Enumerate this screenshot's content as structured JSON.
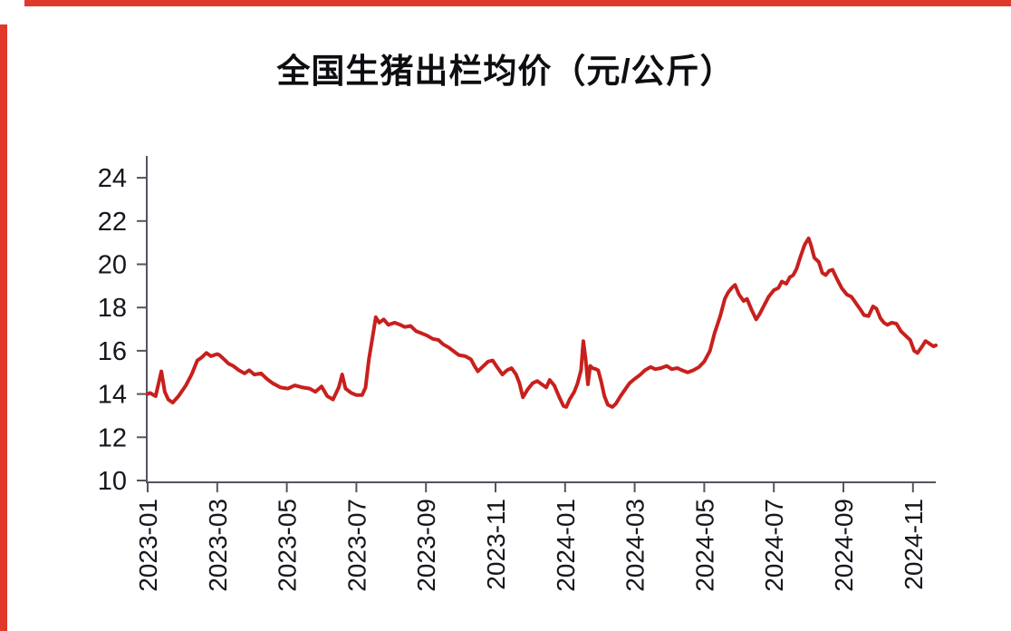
{
  "decor": {
    "top_bar_color": "#e0382b",
    "left_bar_color": "#e0382b"
  },
  "chart_data": {
    "type": "line",
    "title": "全国生猪出栏均价（元/公斤）",
    "xlabel": "",
    "ylabel": "",
    "grid": false,
    "legend": "none",
    "line_color": "#c8201d",
    "axis_color": "#54545f",
    "ylim": [
      10,
      25
    ],
    "y_ticks": [
      10,
      12,
      14,
      16,
      18,
      20,
      22,
      24
    ],
    "x_tick_rotation_deg": 90,
    "x_tick_labels": [
      "2023-01",
      "2023-03",
      "2023-05",
      "2023-07",
      "2023-09",
      "2023-11",
      "2024-01",
      "2024-03",
      "2024-05",
      "2024-07",
      "2024-09",
      "2024-11"
    ],
    "points": [
      [
        "2023-01-01",
        14.0
      ],
      [
        "2023-01-03",
        14.05
      ],
      [
        "2023-01-08",
        13.9
      ],
      [
        "2023-01-13",
        15.05
      ],
      [
        "2023-01-16",
        14.1
      ],
      [
        "2023-01-19",
        13.75
      ],
      [
        "2023-01-23",
        13.6
      ],
      [
        "2023-01-28",
        13.9
      ],
      [
        "2023-02-04",
        14.4
      ],
      [
        "2023-02-09",
        14.9
      ],
      [
        "2023-02-14",
        15.55
      ],
      [
        "2023-02-18",
        15.7
      ],
      [
        "2023-02-22",
        15.9
      ],
      [
        "2023-02-26",
        15.75
      ],
      [
        "2023-03-01",
        15.85
      ],
      [
        "2023-03-03",
        15.8
      ],
      [
        "2023-03-07",
        15.6
      ],
      [
        "2023-03-11",
        15.4
      ],
      [
        "2023-03-15",
        15.3
      ],
      [
        "2023-03-20",
        15.1
      ],
      [
        "2023-03-25",
        14.95
      ],
      [
        "2023-03-29",
        15.1
      ],
      [
        "2023-04-03",
        14.9
      ],
      [
        "2023-04-09",
        14.95
      ],
      [
        "2023-04-14",
        14.7
      ],
      [
        "2023-04-19",
        14.5
      ],
      [
        "2023-04-26",
        14.3
      ],
      [
        "2023-05-02",
        14.25
      ],
      [
        "2023-05-08",
        14.4
      ],
      [
        "2023-05-15",
        14.3
      ],
      [
        "2023-05-21",
        14.25
      ],
      [
        "2023-05-26",
        14.1
      ],
      [
        "2023-06-01",
        14.35
      ],
      [
        "2023-06-06",
        13.9
      ],
      [
        "2023-06-11",
        13.75
      ],
      [
        "2023-06-16",
        14.3
      ],
      [
        "2023-06-19",
        14.9
      ],
      [
        "2023-06-22",
        14.25
      ],
      [
        "2023-06-27",
        14.05
      ],
      [
        "2023-07-01",
        13.95
      ],
      [
        "2023-07-06",
        13.95
      ],
      [
        "2023-07-09",
        14.3
      ],
      [
        "2023-07-12",
        15.6
      ],
      [
        "2023-07-16",
        16.9
      ],
      [
        "2023-07-18",
        17.55
      ],
      [
        "2023-07-21",
        17.3
      ],
      [
        "2023-07-25",
        17.45
      ],
      [
        "2023-07-29",
        17.2
      ],
      [
        "2023-08-04",
        17.3
      ],
      [
        "2023-08-09",
        17.2
      ],
      [
        "2023-08-13",
        17.1
      ],
      [
        "2023-08-18",
        17.15
      ],
      [
        "2023-08-23",
        16.9
      ],
      [
        "2023-08-28",
        16.8
      ],
      [
        "2023-09-02",
        16.7
      ],
      [
        "2023-09-07",
        16.55
      ],
      [
        "2023-09-12",
        16.5
      ],
      [
        "2023-09-16",
        16.3
      ],
      [
        "2023-09-21",
        16.15
      ],
      [
        "2023-09-26",
        15.95
      ],
      [
        "2023-09-30",
        15.8
      ],
      [
        "2023-10-05",
        15.75
      ],
      [
        "2023-10-10",
        15.6
      ],
      [
        "2023-10-13",
        15.3
      ],
      [
        "2023-10-16",
        15.05
      ],
      [
        "2023-10-21",
        15.3
      ],
      [
        "2023-10-25",
        15.5
      ],
      [
        "2023-10-29",
        15.55
      ],
      [
        "2023-11-03",
        15.2
      ],
      [
        "2023-11-07",
        14.9
      ],
      [
        "2023-11-11",
        15.1
      ],
      [
        "2023-11-15",
        15.2
      ],
      [
        "2023-11-19",
        14.9
      ],
      [
        "2023-11-22",
        14.5
      ],
      [
        "2023-11-25",
        13.85
      ],
      [
        "2023-11-29",
        14.2
      ],
      [
        "2023-12-03",
        14.5
      ],
      [
        "2023-12-07",
        14.6
      ],
      [
        "2023-12-11",
        14.45
      ],
      [
        "2023-12-15",
        14.3
      ],
      [
        "2023-12-18",
        14.65
      ],
      [
        "2023-12-22",
        14.4
      ],
      [
        "2023-12-26",
        13.9
      ],
      [
        "2023-12-30",
        13.45
      ],
      [
        "2024-01-02",
        13.4
      ],
      [
        "2024-01-05",
        13.75
      ],
      [
        "2024-01-09",
        14.1
      ],
      [
        "2024-01-12",
        14.5
      ],
      [
        "2024-01-15",
        15.1
      ],
      [
        "2024-01-17",
        16.45
      ],
      [
        "2024-01-19",
        15.6
      ],
      [
        "2024-01-21",
        14.45
      ],
      [
        "2024-01-23",
        15.3
      ],
      [
        "2024-01-25",
        15.2
      ],
      [
        "2024-01-28",
        15.15
      ],
      [
        "2024-01-30",
        15.1
      ],
      [
        "2024-02-02",
        14.6
      ],
      [
        "2024-02-05",
        13.9
      ],
      [
        "2024-02-08",
        13.5
      ],
      [
        "2024-02-12",
        13.4
      ],
      [
        "2024-02-15",
        13.55
      ],
      [
        "2024-02-19",
        13.9
      ],
      [
        "2024-02-23",
        14.2
      ],
      [
        "2024-02-27",
        14.5
      ],
      [
        "2024-03-01",
        14.7
      ],
      [
        "2024-03-05",
        14.85
      ],
      [
        "2024-03-10",
        15.1
      ],
      [
        "2024-03-15",
        15.25
      ],
      [
        "2024-03-19",
        15.15
      ],
      [
        "2024-03-24",
        15.2
      ],
      [
        "2024-03-29",
        15.3
      ],
      [
        "2024-04-03",
        15.15
      ],
      [
        "2024-04-08",
        15.2
      ],
      [
        "2024-04-12",
        15.1
      ],
      [
        "2024-04-17",
        15.0
      ],
      [
        "2024-04-22",
        15.1
      ],
      [
        "2024-04-27",
        15.25
      ],
      [
        "2024-05-01",
        15.5
      ],
      [
        "2024-05-06",
        16.0
      ],
      [
        "2024-05-10",
        16.8
      ],
      [
        "2024-05-15",
        17.6
      ],
      [
        "2024-05-19",
        18.4
      ],
      [
        "2024-05-22",
        18.7
      ],
      [
        "2024-05-25",
        18.9
      ],
      [
        "2024-05-28",
        19.05
      ],
      [
        "2024-06-01",
        18.6
      ],
      [
        "2024-06-05",
        18.3
      ],
      [
        "2024-06-08",
        18.4
      ],
      [
        "2024-06-12",
        17.9
      ],
      [
        "2024-06-16",
        17.45
      ],
      [
        "2024-06-19",
        17.7
      ],
      [
        "2024-06-23",
        18.1
      ],
      [
        "2024-06-27",
        18.5
      ],
      [
        "2024-07-01",
        18.8
      ],
      [
        "2024-07-05",
        18.9
      ],
      [
        "2024-07-08",
        19.2
      ],
      [
        "2024-07-12",
        19.1
      ],
      [
        "2024-07-15",
        19.4
      ],
      [
        "2024-07-18",
        19.5
      ],
      [
        "2024-07-21",
        19.8
      ],
      [
        "2024-07-24",
        20.3
      ],
      [
        "2024-07-28",
        20.9
      ],
      [
        "2024-08-01",
        21.2
      ],
      [
        "2024-08-03",
        20.9
      ],
      [
        "2024-08-06",
        20.3
      ],
      [
        "2024-08-10",
        20.1
      ],
      [
        "2024-08-13",
        19.6
      ],
      [
        "2024-08-16",
        19.5
      ],
      [
        "2024-08-19",
        19.7
      ],
      [
        "2024-08-22",
        19.75
      ],
      [
        "2024-08-26",
        19.3
      ],
      [
        "2024-08-30",
        18.9
      ],
      [
        "2024-09-04",
        18.6
      ],
      [
        "2024-09-08",
        18.5
      ],
      [
        "2024-09-12",
        18.2
      ],
      [
        "2024-09-16",
        17.9
      ],
      [
        "2024-09-19",
        17.65
      ],
      [
        "2024-09-23",
        17.6
      ],
      [
        "2024-09-27",
        18.05
      ],
      [
        "2024-09-30",
        17.95
      ],
      [
        "2024-10-03",
        17.5
      ],
      [
        "2024-10-06",
        17.3
      ],
      [
        "2024-10-09",
        17.2
      ],
      [
        "2024-10-13",
        17.3
      ],
      [
        "2024-10-17",
        17.25
      ],
      [
        "2024-10-21",
        16.9
      ],
      [
        "2024-10-25",
        16.7
      ],
      [
        "2024-10-29",
        16.5
      ],
      [
        "2024-11-02",
        16.0
      ],
      [
        "2024-11-05",
        15.9
      ],
      [
        "2024-11-09",
        16.2
      ],
      [
        "2024-11-12",
        16.45
      ],
      [
        "2024-11-15",
        16.35
      ],
      [
        "2024-11-19",
        16.2
      ],
      [
        "2024-11-21",
        16.25
      ]
    ]
  }
}
